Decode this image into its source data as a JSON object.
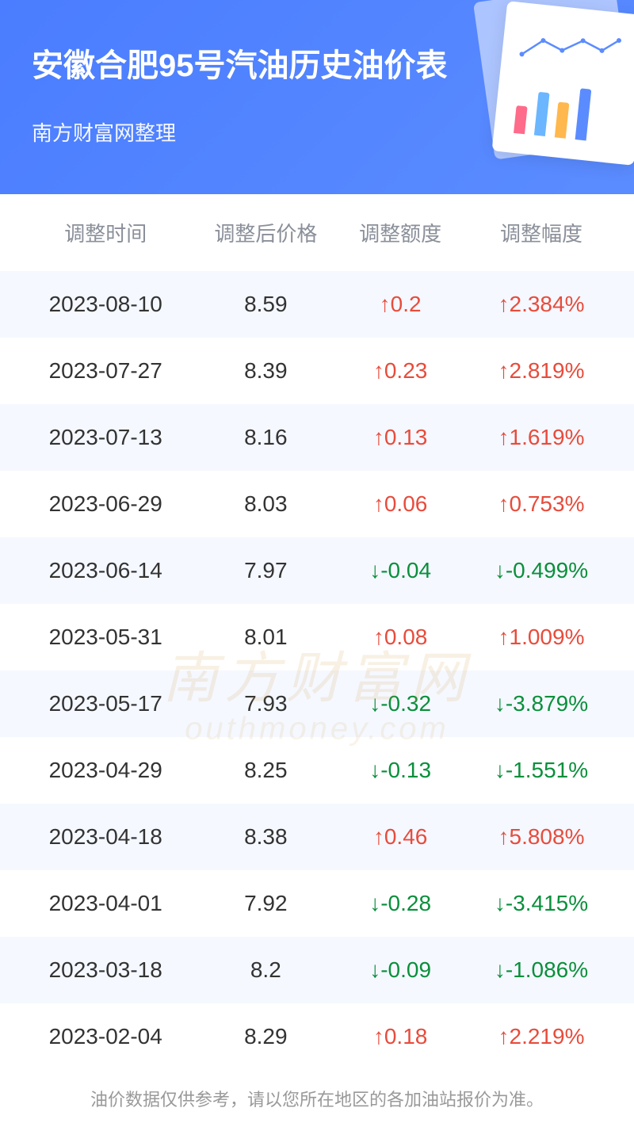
{
  "header": {
    "title": "安徽合肥95号汽油历史油价表",
    "subtitle": "南方财富网整理"
  },
  "table": {
    "columns": [
      "调整时间",
      "调整后价格",
      "调整额度",
      "调整幅度"
    ],
    "rows": [
      {
        "date": "2023-08-10",
        "price": "8.59",
        "amount": "0.2",
        "percent": "2.384%",
        "direction": "up"
      },
      {
        "date": "2023-07-27",
        "price": "8.39",
        "amount": "0.23",
        "percent": "2.819%",
        "direction": "up"
      },
      {
        "date": "2023-07-13",
        "price": "8.16",
        "amount": "0.13",
        "percent": "1.619%",
        "direction": "up"
      },
      {
        "date": "2023-06-29",
        "price": "8.03",
        "amount": "0.06",
        "percent": "0.753%",
        "direction": "up"
      },
      {
        "date": "2023-06-14",
        "price": "7.97",
        "amount": "-0.04",
        "percent": "-0.499%",
        "direction": "down"
      },
      {
        "date": "2023-05-31",
        "price": "8.01",
        "amount": "0.08",
        "percent": "1.009%",
        "direction": "up"
      },
      {
        "date": "2023-05-17",
        "price": "7.93",
        "amount": "-0.32",
        "percent": "-3.879%",
        "direction": "down"
      },
      {
        "date": "2023-04-29",
        "price": "8.25",
        "amount": "-0.13",
        "percent": "-1.551%",
        "direction": "down"
      },
      {
        "date": "2023-04-18",
        "price": "8.38",
        "amount": "0.46",
        "percent": "5.808%",
        "direction": "up"
      },
      {
        "date": "2023-04-01",
        "price": "7.92",
        "amount": "-0.28",
        "percent": "-3.415%",
        "direction": "down"
      },
      {
        "date": "2023-03-18",
        "price": "8.2",
        "amount": "-0.09",
        "percent": "-1.086%",
        "direction": "down"
      },
      {
        "date": "2023-02-04",
        "price": "8.29",
        "amount": "0.18",
        "percent": "2.219%",
        "direction": "up"
      }
    ]
  },
  "footer": {
    "disclaimer": "油价数据仅供参考，请以您所在地区的各加油站报价为准。"
  },
  "watermark": {
    "main": "南方财富网",
    "sub": "outhmoney.com"
  },
  "colors": {
    "header_bg": "#4a7dff",
    "up_color": "#e74c3c",
    "down_color": "#0a8f3c",
    "even_row": "#f5f8ff",
    "text_primary": "#333333",
    "text_secondary": "#8a8f99"
  }
}
